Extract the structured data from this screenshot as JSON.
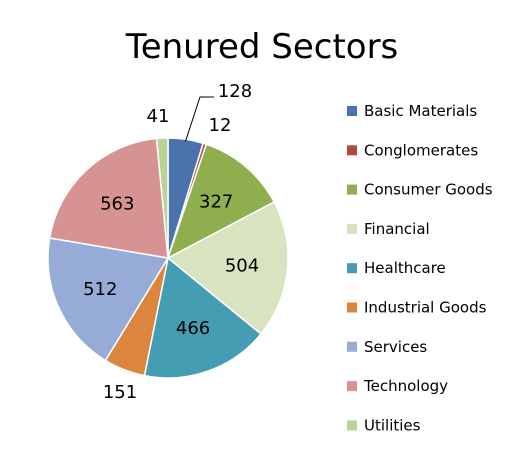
{
  "chart_data": {
    "type": "pie",
    "title": "Tenured Sectors",
    "legend_position": "right",
    "slices": [
      {
        "label": "Basic Materials",
        "value": 128,
        "color": "#4a72ac"
      },
      {
        "label": "Conglomerates",
        "value": 12,
        "color": "#b04a47"
      },
      {
        "label": "Consumer Goods",
        "value": 327,
        "color": "#8fae4e"
      },
      {
        "label": "Financial",
        "value": 504,
        "color": "#d8e4bf"
      },
      {
        "label": "Healthcare",
        "value": 466,
        "color": "#449db2"
      },
      {
        "label": "Industrial Goods",
        "value": 151,
        "color": "#dc853f"
      },
      {
        "label": "Services",
        "value": 512,
        "color": "#96abd5"
      },
      {
        "label": "Technology",
        "value": 563,
        "color": "#d69392"
      },
      {
        "label": "Utilities",
        "value": 41,
        "color": "#b9d495"
      }
    ]
  }
}
